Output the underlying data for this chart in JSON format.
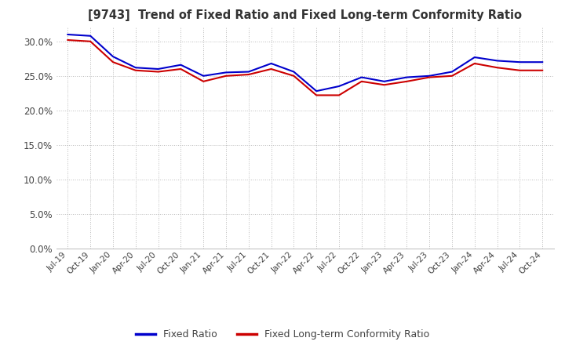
{
  "title": "[9743]  Trend of Fixed Ratio and Fixed Long-term Conformity Ratio",
  "x_labels": [
    "Jul-19",
    "Oct-19",
    "Jan-20",
    "Apr-20",
    "Jul-20",
    "Oct-20",
    "Jan-21",
    "Apr-21",
    "Jul-21",
    "Oct-21",
    "Jan-22",
    "Apr-22",
    "Jul-22",
    "Oct-22",
    "Jan-23",
    "Apr-23",
    "Jul-23",
    "Oct-23",
    "Jan-24",
    "Apr-24",
    "Jul-24",
    "Oct-24"
  ],
  "fixed_ratio": [
    0.31,
    0.308,
    0.278,
    0.262,
    0.26,
    0.266,
    0.25,
    0.255,
    0.256,
    0.268,
    0.256,
    0.228,
    0.235,
    0.248,
    0.242,
    0.248,
    0.25,
    0.256,
    0.277,
    0.272,
    0.27,
    0.27
  ],
  "fixed_lt_ratio": [
    0.302,
    0.3,
    0.27,
    0.258,
    0.256,
    0.26,
    0.242,
    0.25,
    0.252,
    0.26,
    0.25,
    0.222,
    0.222,
    0.242,
    0.237,
    0.242,
    0.248,
    0.25,
    0.268,
    0.262,
    0.258,
    0.258
  ],
  "fixed_ratio_color": "#0000cc",
  "fixed_lt_ratio_color": "#cc0000",
  "ylim": [
    0.0,
    0.32
  ],
  "yticks": [
    0.0,
    0.05,
    0.1,
    0.15,
    0.2,
    0.25,
    0.3
  ],
  "grid_color": "#bbbbbb",
  "background_color": "#ffffff",
  "legend_fixed": "Fixed Ratio",
  "legend_fixed_lt": "Fixed Long-term Conformity Ratio",
  "line_width": 1.5
}
